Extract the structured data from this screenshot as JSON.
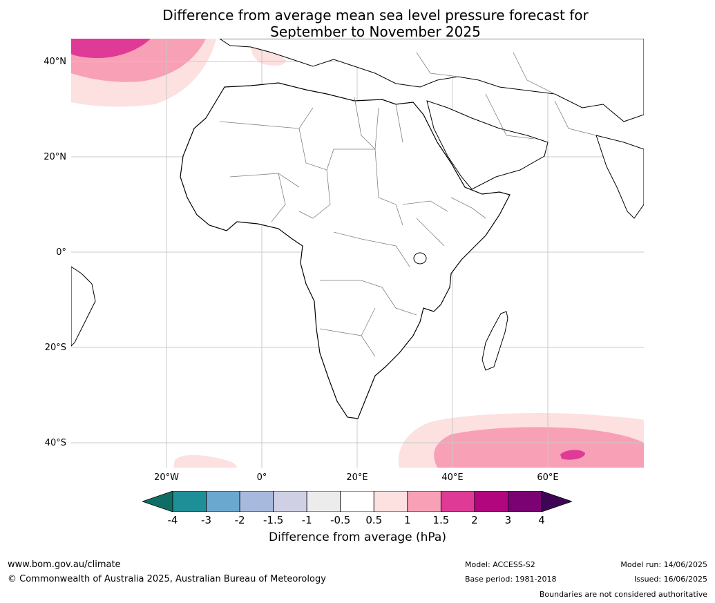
{
  "title": {
    "line1": "Difference from average mean sea level pressure forecast for",
    "line2": "September to November 2025"
  },
  "map": {
    "latitude_labels": [
      "40°N",
      "20°N",
      "0°",
      "20°S",
      "40°S"
    ],
    "longitude_labels": [
      "20°W",
      "0°",
      "20°E",
      "40°E",
      "60°E"
    ],
    "land_color": "#ffffff",
    "coastline_color": "#000000",
    "border_color": "#808080",
    "gridline_color": "#c8c8c8"
  },
  "colorbar": {
    "ticks": [
      "-4",
      "-3",
      "-2",
      "-1.5",
      "-1",
      "-0.5",
      "0.5",
      "1",
      "1.5",
      "2",
      "3",
      "4"
    ],
    "colors": [
      "#0f6e63",
      "#1f8f97",
      "#6aa8cf",
      "#a7b9dd",
      "#cfd0e3",
      "#ececec",
      "#ffffff",
      "#fde0e0",
      "#f8a0b6",
      "#de3a96",
      "#b2067e",
      "#7b0272",
      "#3f0555"
    ],
    "label": "Difference from average (hPa)"
  },
  "footer": {
    "website": "www.bom.gov.au/climate",
    "copyright": "© Commonwealth of Australia 2025, Australian Bureau of Meteorology",
    "model": "Model: ACCESS-S2",
    "base_period": "Base period: 1981-2018",
    "model_run": "Model run: 14/06/2025",
    "issued": "Issued: 16/06/2025",
    "disclaimer": "Boundaries are not considered authoritative"
  }
}
